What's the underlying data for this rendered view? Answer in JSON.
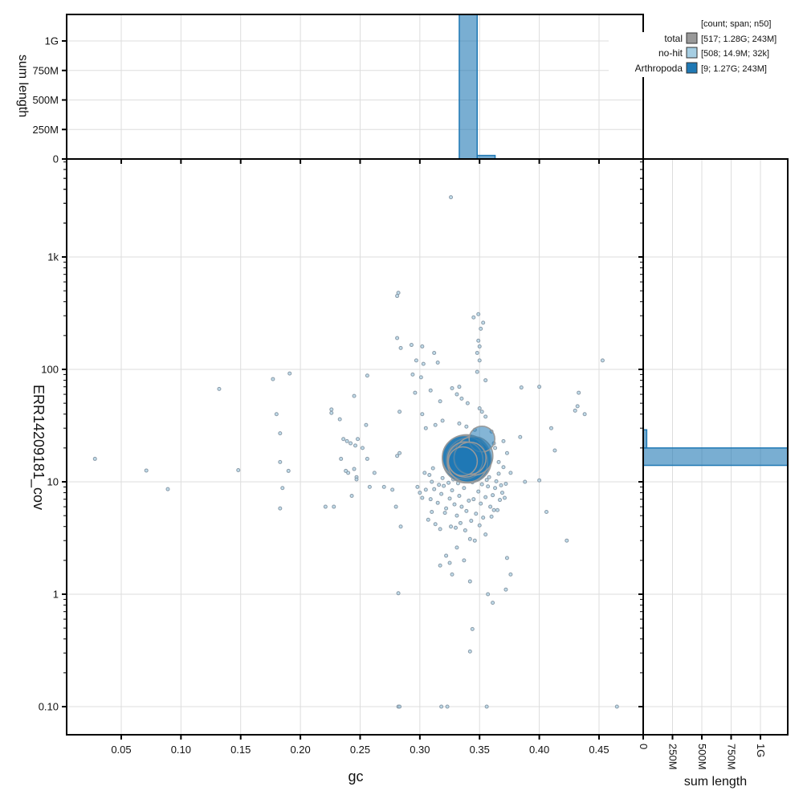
{
  "chart_data": {
    "type": "scatter",
    "title": "",
    "xlabel": "gc",
    "ylabel": "ERR14209181_cov",
    "xlim": [
      0.012,
      0.48
    ],
    "ylim": [
      0.063,
      6000
    ],
    "yscale": "log",
    "grid": true,
    "x_ticks": [
      "0.05",
      "0.10",
      "0.15",
      "0.20",
      "0.25",
      "0.30",
      "0.35",
      "0.40",
      "0.45"
    ],
    "y_ticks": [
      "0.10",
      "1",
      "10",
      "100",
      "1k"
    ],
    "legend": {
      "position": "top-right",
      "header": "[count; span; n50]",
      "entries": [
        {
          "name": "total",
          "label": "[517; 1.28G; 243M]",
          "color": "#999999"
        },
        {
          "name": "no-hit",
          "label": "[508; 14.9M; 32k]",
          "color": "#a6cee3"
        },
        {
          "name": "Arthropoda",
          "label": "[9; 1.27G; 243M]",
          "color": "#1f78b4"
        }
      ]
    },
    "series": [
      {
        "name": "Arthropoda",
        "color": "#1f78b4",
        "points": [
          {
            "gc": 0.339,
            "cov": 16.0,
            "r": 30
          },
          {
            "gc": 0.341,
            "cov": 15.5,
            "r": 28
          },
          {
            "gc": 0.337,
            "cov": 16.5,
            "r": 27
          },
          {
            "gc": 0.34,
            "cov": 15.0,
            "r": 25
          },
          {
            "gc": 0.345,
            "cov": 17.0,
            "r": 24
          },
          {
            "gc": 0.352,
            "cov": 24.0,
            "r": 16
          },
          {
            "gc": 0.338,
            "cov": 15.8,
            "r": 22
          },
          {
            "gc": 0.342,
            "cov": 16.2,
            "r": 20
          },
          {
            "gc": 0.336,
            "cov": 15.2,
            "r": 18
          }
        ]
      },
      {
        "name": "no-hit",
        "color": "#a6cee3",
        "points": [
          [
            0.326,
            3400
          ],
          [
            0.282,
            480
          ],
          [
            0.281,
            450
          ],
          [
            0.349,
            310
          ],
          [
            0.345,
            290
          ],
          [
            0.353,
            260
          ],
          [
            0.351,
            230
          ],
          [
            0.281,
            190
          ],
          [
            0.293,
            165
          ],
          [
            0.302,
            160
          ],
          [
            0.312,
            140
          ],
          [
            0.349,
            180
          ],
          [
            0.35,
            160
          ],
          [
            0.348,
            140
          ],
          [
            0.284,
            155
          ],
          [
            0.297,
            120
          ],
          [
            0.35,
            120
          ],
          [
            0.315,
            115
          ],
          [
            0.303,
            112
          ],
          [
            0.348,
            95
          ],
          [
            0.355,
            80
          ],
          [
            0.294,
            90
          ],
          [
            0.301,
            85
          ],
          [
            0.309,
            65
          ],
          [
            0.296,
            62
          ],
          [
            0.327,
            68
          ],
          [
            0.331,
            60
          ],
          [
            0.333,
            70
          ],
          [
            0.317,
            52
          ],
          [
            0.335,
            55
          ],
          [
            0.34,
            50
          ],
          [
            0.35,
            45
          ],
          [
            0.352,
            42
          ],
          [
            0.355,
            38
          ],
          [
            0.302,
            40
          ],
          [
            0.283,
            42
          ],
          [
            0.305,
            30
          ],
          [
            0.313,
            32
          ],
          [
            0.319,
            35
          ],
          [
            0.333,
            33
          ],
          [
            0.339,
            31
          ],
          [
            0.346,
            29
          ],
          [
            0.283,
            18
          ],
          [
            0.281,
            17
          ],
          [
            0.284,
            4.0
          ],
          [
            0.28,
            6.0
          ],
          [
            0.277,
            8.5
          ],
          [
            0.27,
            9.0
          ],
          [
            0.258,
            9.0
          ],
          [
            0.255,
            32
          ],
          [
            0.248,
            24
          ],
          [
            0.252,
            20
          ],
          [
            0.246,
            21
          ],
          [
            0.24,
            12
          ],
          [
            0.245,
            13
          ],
          [
            0.247,
            11
          ],
          [
            0.226,
            44
          ],
          [
            0.226,
            41
          ],
          [
            0.233,
            36
          ],
          [
            0.236,
            24
          ],
          [
            0.242,
            22
          ],
          [
            0.239,
            23
          ],
          [
            0.234,
            16
          ],
          [
            0.247,
            10.5
          ],
          [
            0.238,
            12.5
          ],
          [
            0.243,
            7.5
          ],
          [
            0.256,
            16
          ],
          [
            0.262,
            12
          ],
          [
            0.256,
            88
          ],
          [
            0.245,
            58
          ],
          [
            0.228,
            6.0
          ],
          [
            0.221,
            6.0
          ],
          [
            0.191,
            92
          ],
          [
            0.177,
            82
          ],
          [
            0.18,
            40
          ],
          [
            0.183,
            27
          ],
          [
            0.183,
            15
          ],
          [
            0.19,
            12.5
          ],
          [
            0.185,
            8.8
          ],
          [
            0.183,
            5.8
          ],
          [
            0.132,
            67
          ],
          [
            0.148,
            12.7
          ],
          [
            0.071,
            12.6
          ],
          [
            0.089,
            8.6
          ],
          [
            0.028,
            16
          ],
          [
            0.37,
            23
          ],
          [
            0.373,
            18
          ],
          [
            0.376,
            12
          ],
          [
            0.372,
            9.6
          ],
          [
            0.384,
            25
          ],
          [
            0.388,
            10
          ],
          [
            0.4,
            10.3
          ],
          [
            0.385,
            69
          ],
          [
            0.4,
            70
          ],
          [
            0.41,
            30
          ],
          [
            0.413,
            19
          ],
          [
            0.43,
            43
          ],
          [
            0.432,
            47
          ],
          [
            0.433,
            62
          ],
          [
            0.438,
            40
          ],
          [
            0.453,
            120
          ],
          [
            0.406,
            5.4
          ],
          [
            0.423,
            3.0
          ],
          [
            0.373,
            2.1
          ],
          [
            0.376,
            1.5
          ],
          [
            0.372,
            1.1
          ],
          [
            0.357,
            1.0
          ],
          [
            0.361,
            0.84
          ],
          [
            0.317,
            1.8
          ],
          [
            0.322,
            2.2
          ],
          [
            0.325,
            1.9
          ],
          [
            0.327,
            1.5
          ],
          [
            0.331,
            2.6
          ],
          [
            0.337,
            2.0
          ],
          [
            0.342,
            1.3
          ],
          [
            0.344,
            0.49
          ],
          [
            0.342,
            0.31
          ],
          [
            0.282,
            1.02
          ],
          [
            0.282,
            0.1
          ],
          [
            0.283,
            0.1
          ],
          [
            0.318,
            0.1
          ],
          [
            0.323,
            0.1
          ],
          [
            0.356,
            0.1
          ],
          [
            0.465,
            0.1
          ],
          [
            0.31,
            10
          ],
          [
            0.305,
            8.5
          ],
          [
            0.3,
            8.0
          ],
          [
            0.298,
            9.0
          ],
          [
            0.302,
            7.2
          ],
          [
            0.309,
            7.0
          ],
          [
            0.312,
            8.6
          ],
          [
            0.315,
            6.5
          ],
          [
            0.318,
            7.8
          ],
          [
            0.32,
            9.2
          ],
          [
            0.322,
            5.8
          ],
          [
            0.325,
            7.1
          ],
          [
            0.327,
            8.4
          ],
          [
            0.329,
            6.3
          ],
          [
            0.331,
            5.0
          ],
          [
            0.333,
            7.5
          ],
          [
            0.335,
            6.0
          ],
          [
            0.337,
            8.8
          ],
          [
            0.339,
            5.5
          ],
          [
            0.341,
            6.8
          ],
          [
            0.343,
            4.5
          ],
          [
            0.345,
            7.0
          ],
          [
            0.347,
            5.2
          ],
          [
            0.349,
            8.2
          ],
          [
            0.351,
            6.4
          ],
          [
            0.353,
            4.8
          ],
          [
            0.355,
            7.3
          ],
          [
            0.357,
            9.1
          ],
          [
            0.359,
            6.0
          ],
          [
            0.361,
            7.6
          ],
          [
            0.363,
            8.8
          ],
          [
            0.365,
            5.6
          ],
          [
            0.367,
            6.9
          ],
          [
            0.369,
            8.0
          ],
          [
            0.371,
            7.2
          ],
          [
            0.307,
            4.6
          ],
          [
            0.313,
            4.2
          ],
          [
            0.317,
            3.8
          ],
          [
            0.321,
            5.3
          ],
          [
            0.326,
            4.0
          ],
          [
            0.33,
            3.9
          ],
          [
            0.334,
            4.3
          ],
          [
            0.338,
            3.7
          ],
          [
            0.342,
            3.1
          ],
          [
            0.346,
            3.0
          ],
          [
            0.35,
            4.1
          ],
          [
            0.355,
            3.4
          ],
          [
            0.36,
            4.9
          ],
          [
            0.362,
            5.6
          ],
          [
            0.31,
            5.4
          ],
          [
            0.316,
            9.4
          ],
          [
            0.319,
            10.8
          ],
          [
            0.324,
            9.8
          ],
          [
            0.328,
            10.5
          ],
          [
            0.332,
            9.7
          ],
          [
            0.336,
            10.2
          ],
          [
            0.344,
            9.9
          ],
          [
            0.348,
            10.6
          ],
          [
            0.352,
            9.5
          ],
          [
            0.356,
            10.4
          ],
          [
            0.358,
            11.0
          ],
          [
            0.364,
            10.1
          ],
          [
            0.366,
            11.8
          ],
          [
            0.368,
            9.3
          ],
          [
            0.304,
            12.0
          ],
          [
            0.308,
            11.5
          ],
          [
            0.311,
            13.2
          ],
          [
            0.366,
            15.0
          ],
          [
            0.363,
            20.0
          ],
          [
            0.37,
            13.5
          ],
          [
            0.36,
            28.0
          ],
          [
            0.362,
            22.0
          ]
        ]
      }
    ],
    "top_histogram": {
      "type": "bar",
      "ylabel": "sum length",
      "y_ticks": [
        "0",
        "250M",
        "500M",
        "750M",
        "1G"
      ],
      "bins": [
        {
          "gc_from": 0.333,
          "gc_to": 0.348,
          "value_bp": 1270000000
        },
        {
          "gc_from": 0.348,
          "gc_to": 0.363,
          "value_bp": 30000000
        }
      ],
      "color": "#1f78b4"
    },
    "right_histogram": {
      "type": "bar",
      "xlabel": "sum length",
      "x_ticks": [
        "0",
        "250M",
        "500M",
        "750M",
        "1G"
      ],
      "bins": [
        {
          "cov_from": 20,
          "cov_to": 29,
          "value_bp": 30000000
        },
        {
          "cov_from": 14,
          "cov_to": 20,
          "value_bp": 1270000000
        }
      ],
      "color": "#1f78b4"
    }
  }
}
